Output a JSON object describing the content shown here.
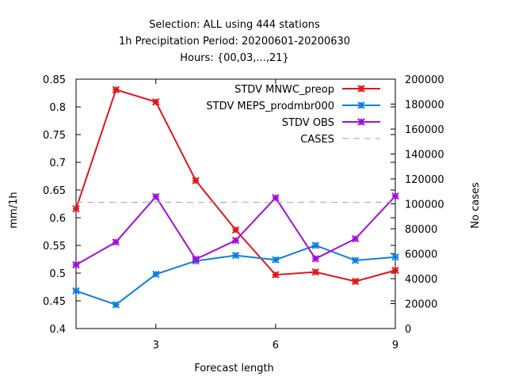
{
  "chart_data": {
    "type": "line",
    "title_lines": [
      "Selection: ALL using   444 stations",
      "1h Precipitation   Period: 20200601-20200630",
      "Hours: {00,03,...,21}"
    ],
    "xlabel": "Forecast length",
    "ylabel": "mm/1h",
    "y2label": "No cases",
    "xlim": [
      1,
      9
    ],
    "ylim": [
      0.4,
      0.85
    ],
    "y2lim": [
      0,
      200000
    ],
    "x_ticks": [
      "3",
      "6",
      "9"
    ],
    "y_ticks": [
      "0.4",
      "0.45",
      "0.5",
      "0.55",
      "0.6",
      "0.65",
      "0.7",
      "0.75",
      "0.8",
      "0.85"
    ],
    "y2_ticks": [
      "0",
      "20000",
      "40000",
      "60000",
      "80000",
      "100000",
      "120000",
      "140000",
      "160000",
      "180000",
      "200000"
    ],
    "legend_position": "top-right",
    "grid": false,
    "x": [
      1,
      2,
      3,
      4,
      5,
      6,
      7,
      8,
      9
    ],
    "series": [
      {
        "name": "STDV MNWC_preop",
        "color": "#e0161b",
        "axis": "y",
        "values": [
          0.616,
          0.831,
          0.809,
          0.667,
          0.578,
          0.497,
          0.502,
          0.485,
          0.505
        ]
      },
      {
        "name": "STDV MEPS_prodmbr000",
        "color": "#0d7fe0",
        "axis": "y",
        "values": [
          0.468,
          0.443,
          0.498,
          0.522,
          0.532,
          0.524,
          0.55,
          0.523,
          0.529
        ]
      },
      {
        "name": "STDV OBS",
        "color": "#a30ddb",
        "axis": "y",
        "values": [
          0.515,
          0.556,
          0.638,
          0.525,
          0.559,
          0.636,
          0.526,
          0.562,
          0.639
        ]
      },
      {
        "name": "CASES",
        "color": "#a0a0a0",
        "axis": "y2",
        "dashed": true,
        "values": [
          101500,
          101000,
          101500,
          101000,
          101500,
          101000,
          101500,
          101000,
          101500
        ]
      }
    ]
  }
}
